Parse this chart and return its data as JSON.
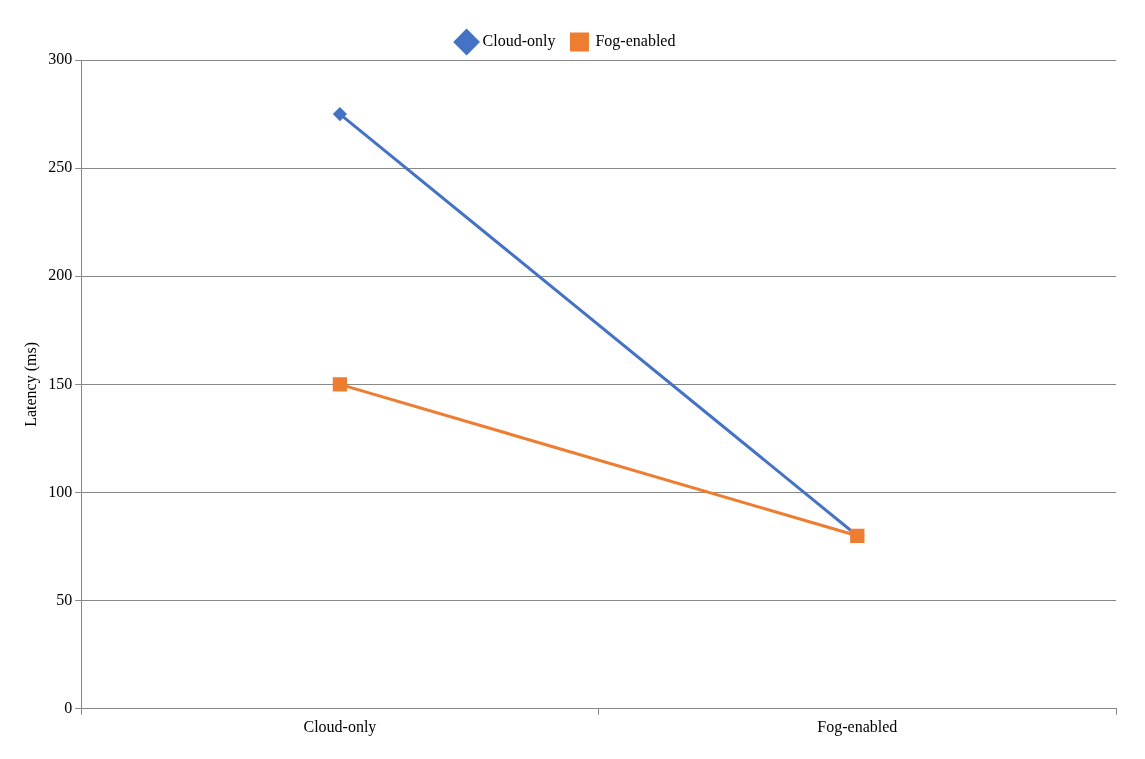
{
  "chart_data": {
    "type": "line",
    "ylabel": "Latency (ms)",
    "categories": [
      "Cloud-only",
      "Fog-enabled"
    ],
    "series": [
      {
        "name": "Cloud-only",
        "color": "#4472c4",
        "values": [
          275,
          80
        ],
        "marker": "diamond"
      },
      {
        "name": "Fog-enabled",
        "color": "#ed7d31",
        "values": [
          150,
          80
        ],
        "marker": "square"
      }
    ],
    "ylim": [
      0,
      300
    ],
    "yticks": [
      0,
      50,
      100,
      150,
      200,
      250,
      300
    ],
    "grid": "y",
    "legend": "top",
    "line_style": "solid"
  }
}
